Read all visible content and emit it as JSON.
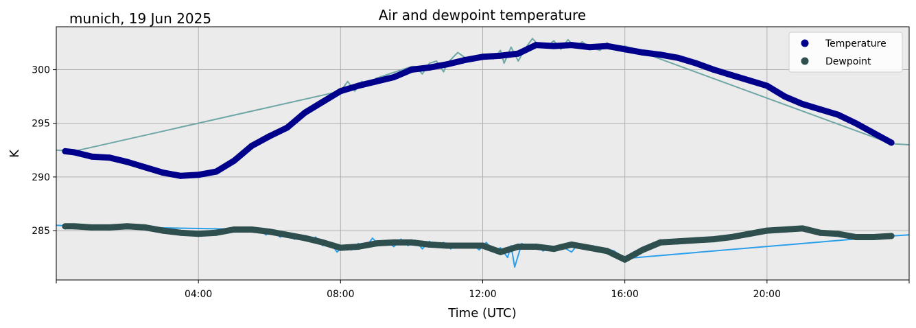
{
  "chart_data": {
    "type": "line",
    "title": "Air and dewpoint temperature",
    "subtitle": "munich, 19 Jun 2025",
    "xlabel": "Time (UTC)",
    "ylabel": "K",
    "xlim": [
      0,
      24
    ],
    "ylim": [
      280.4,
      304.0
    ],
    "x_ticks": [
      {
        "value": 4,
        "label": "04:00"
      },
      {
        "value": 8,
        "label": "08:00"
      },
      {
        "value": 12,
        "label": "12:00"
      },
      {
        "value": 16,
        "label": "16:00"
      },
      {
        "value": 20,
        "label": "20:00"
      }
    ],
    "x_minor_ticks": [
      0,
      24
    ],
    "y_ticks": [
      {
        "value": 285,
        "label": "285"
      },
      {
        "value": 290,
        "label": "290"
      },
      {
        "value": 295,
        "label": "295"
      },
      {
        "value": 300,
        "label": "300"
      }
    ],
    "grid": true,
    "legend_position": "top-right",
    "series": [
      {
        "name": "Temperature",
        "style": "markers",
        "color": "#00008b",
        "x": [
          0.25,
          0.5,
          1.0,
          1.5,
          2.0,
          2.5,
          3.0,
          3.5,
          4.0,
          4.5,
          5.0,
          5.5,
          6.0,
          6.5,
          7.0,
          7.5,
          8.0,
          8.5,
          9.0,
          9.5,
          10.0,
          10.5,
          11.0,
          11.5,
          12.0,
          12.5,
          13.0,
          13.5,
          14.0,
          14.5,
          15.0,
          15.5,
          16.0,
          16.5,
          17.0,
          17.5,
          18.0,
          18.5,
          19.0,
          19.5,
          20.0,
          20.5,
          21.0,
          21.5,
          22.0,
          22.5,
          23.0,
          23.5
        ],
        "values": [
          292.4,
          292.3,
          291.9,
          291.8,
          291.4,
          290.9,
          290.4,
          290.1,
          290.2,
          290.5,
          291.5,
          292.9,
          293.8,
          294.6,
          296.0,
          297.0,
          298.0,
          298.5,
          298.9,
          299.3,
          300.0,
          300.2,
          300.5,
          300.9,
          301.2,
          301.3,
          301.5,
          302.3,
          302.2,
          302.3,
          302.1,
          302.2,
          301.9,
          301.6,
          301.4,
          301.1,
          300.6,
          300.0,
          299.5,
          299.0,
          298.5,
          297.5,
          296.8,
          296.3,
          295.8,
          295.0,
          294.1,
          293.2
        ]
      },
      {
        "name": "Dewpoint",
        "style": "markers",
        "color": "#2f4f4f",
        "x": [
          0.25,
          0.5,
          1.0,
          1.5,
          2.0,
          2.5,
          3.0,
          3.5,
          4.0,
          4.5,
          5.0,
          5.5,
          6.0,
          6.5,
          7.0,
          7.5,
          8.0,
          8.5,
          9.0,
          9.5,
          10.0,
          10.5,
          11.0,
          11.5,
          12.0,
          12.5,
          13.0,
          13.5,
          14.0,
          14.5,
          15.0,
          15.5,
          16.0,
          16.5,
          17.0,
          17.5,
          18.0,
          18.5,
          19.0,
          19.5,
          20.0,
          20.5,
          21.0,
          21.5,
          22.0,
          22.5,
          23.0,
          23.5
        ],
        "values": [
          285.4,
          285.4,
          285.3,
          285.3,
          285.4,
          285.3,
          285.0,
          284.8,
          284.7,
          284.8,
          285.1,
          285.1,
          284.9,
          284.6,
          284.3,
          283.9,
          283.4,
          283.5,
          283.8,
          283.9,
          283.9,
          283.7,
          283.6,
          283.6,
          283.6,
          283.0,
          283.5,
          283.5,
          283.3,
          283.7,
          283.4,
          283.1,
          282.3,
          283.2,
          283.9,
          284.0,
          284.1,
          284.2,
          284.4,
          284.7,
          285.0,
          285.1,
          285.2,
          284.8,
          284.7,
          284.4,
          284.4,
          284.5
        ]
      },
      {
        "name": "",
        "style": "line",
        "color": "#6fa6a6",
        "x": [
          0.0,
          0.5,
          8.0,
          8.2,
          8.4,
          8.6,
          8.8,
          9.0,
          10.0,
          10.1,
          10.3,
          10.5,
          10.7,
          10.9,
          11.0,
          11.3,
          11.6,
          12.0,
          12.3,
          12.5,
          12.6,
          12.8,
          13.0,
          13.2,
          13.4,
          13.6,
          13.8,
          14.0,
          14.2,
          14.4,
          14.6,
          14.8,
          15.0,
          15.3,
          15.5,
          15.7,
          16.0,
          23.5,
          24.0
        ],
        "values": [
          292.5,
          292.4,
          298.0,
          298.9,
          298.0,
          298.9,
          298.6,
          299.2,
          300.3,
          300.3,
          299.6,
          300.6,
          300.8,
          299.8,
          300.6,
          301.6,
          300.9,
          301.2,
          301.0,
          301.8,
          300.6,
          302.1,
          300.8,
          302.0,
          302.9,
          302.2,
          302.1,
          302.7,
          301.9,
          302.8,
          302.1,
          302.6,
          302.1,
          301.8,
          302.5,
          302.0,
          302.2,
          293.1,
          293.0
        ]
      },
      {
        "name": "",
        "style": "line",
        "color": "#2a9fea",
        "x": [
          0.0,
          0.5,
          5.7,
          5.9,
          6.1,
          6.3,
          6.5,
          6.7,
          6.9,
          7.1,
          7.3,
          7.5,
          7.7,
          7.9,
          8.1,
          8.3,
          8.5,
          8.7,
          8.9,
          9.1,
          9.3,
          9.5,
          9.7,
          9.9,
          10.1,
          10.3,
          10.5,
          10.7,
          10.9,
          11.1,
          11.3,
          11.5,
          11.7,
          11.9,
          12.1,
          12.3,
          12.5,
          12.7,
          12.8,
          12.9,
          13.1,
          13.3,
          13.5,
          13.7,
          13.9,
          14.1,
          14.3,
          14.5,
          14.7,
          14.9,
          15.1,
          15.3,
          15.5,
          15.7,
          16.0,
          23.5,
          24.0
        ],
        "values": [
          285.5,
          285.4,
          285.1,
          284.6,
          285.0,
          284.4,
          284.8,
          284.2,
          284.5,
          284.0,
          284.4,
          283.6,
          283.9,
          283.0,
          283.6,
          283.2,
          283.8,
          283.4,
          284.3,
          283.6,
          284.0,
          283.5,
          284.2,
          283.6,
          284.1,
          283.3,
          284.0,
          283.5,
          283.9,
          283.3,
          283.8,
          283.4,
          283.8,
          283.2,
          283.9,
          283.1,
          283.4,
          282.5,
          283.6,
          281.6,
          283.8,
          283.3,
          283.7,
          283.1,
          283.5,
          283.2,
          283.4,
          283.0,
          283.8,
          283.3,
          283.6,
          283.0,
          283.3,
          283.1,
          282.4,
          284.5,
          284.6
        ]
      }
    ]
  }
}
